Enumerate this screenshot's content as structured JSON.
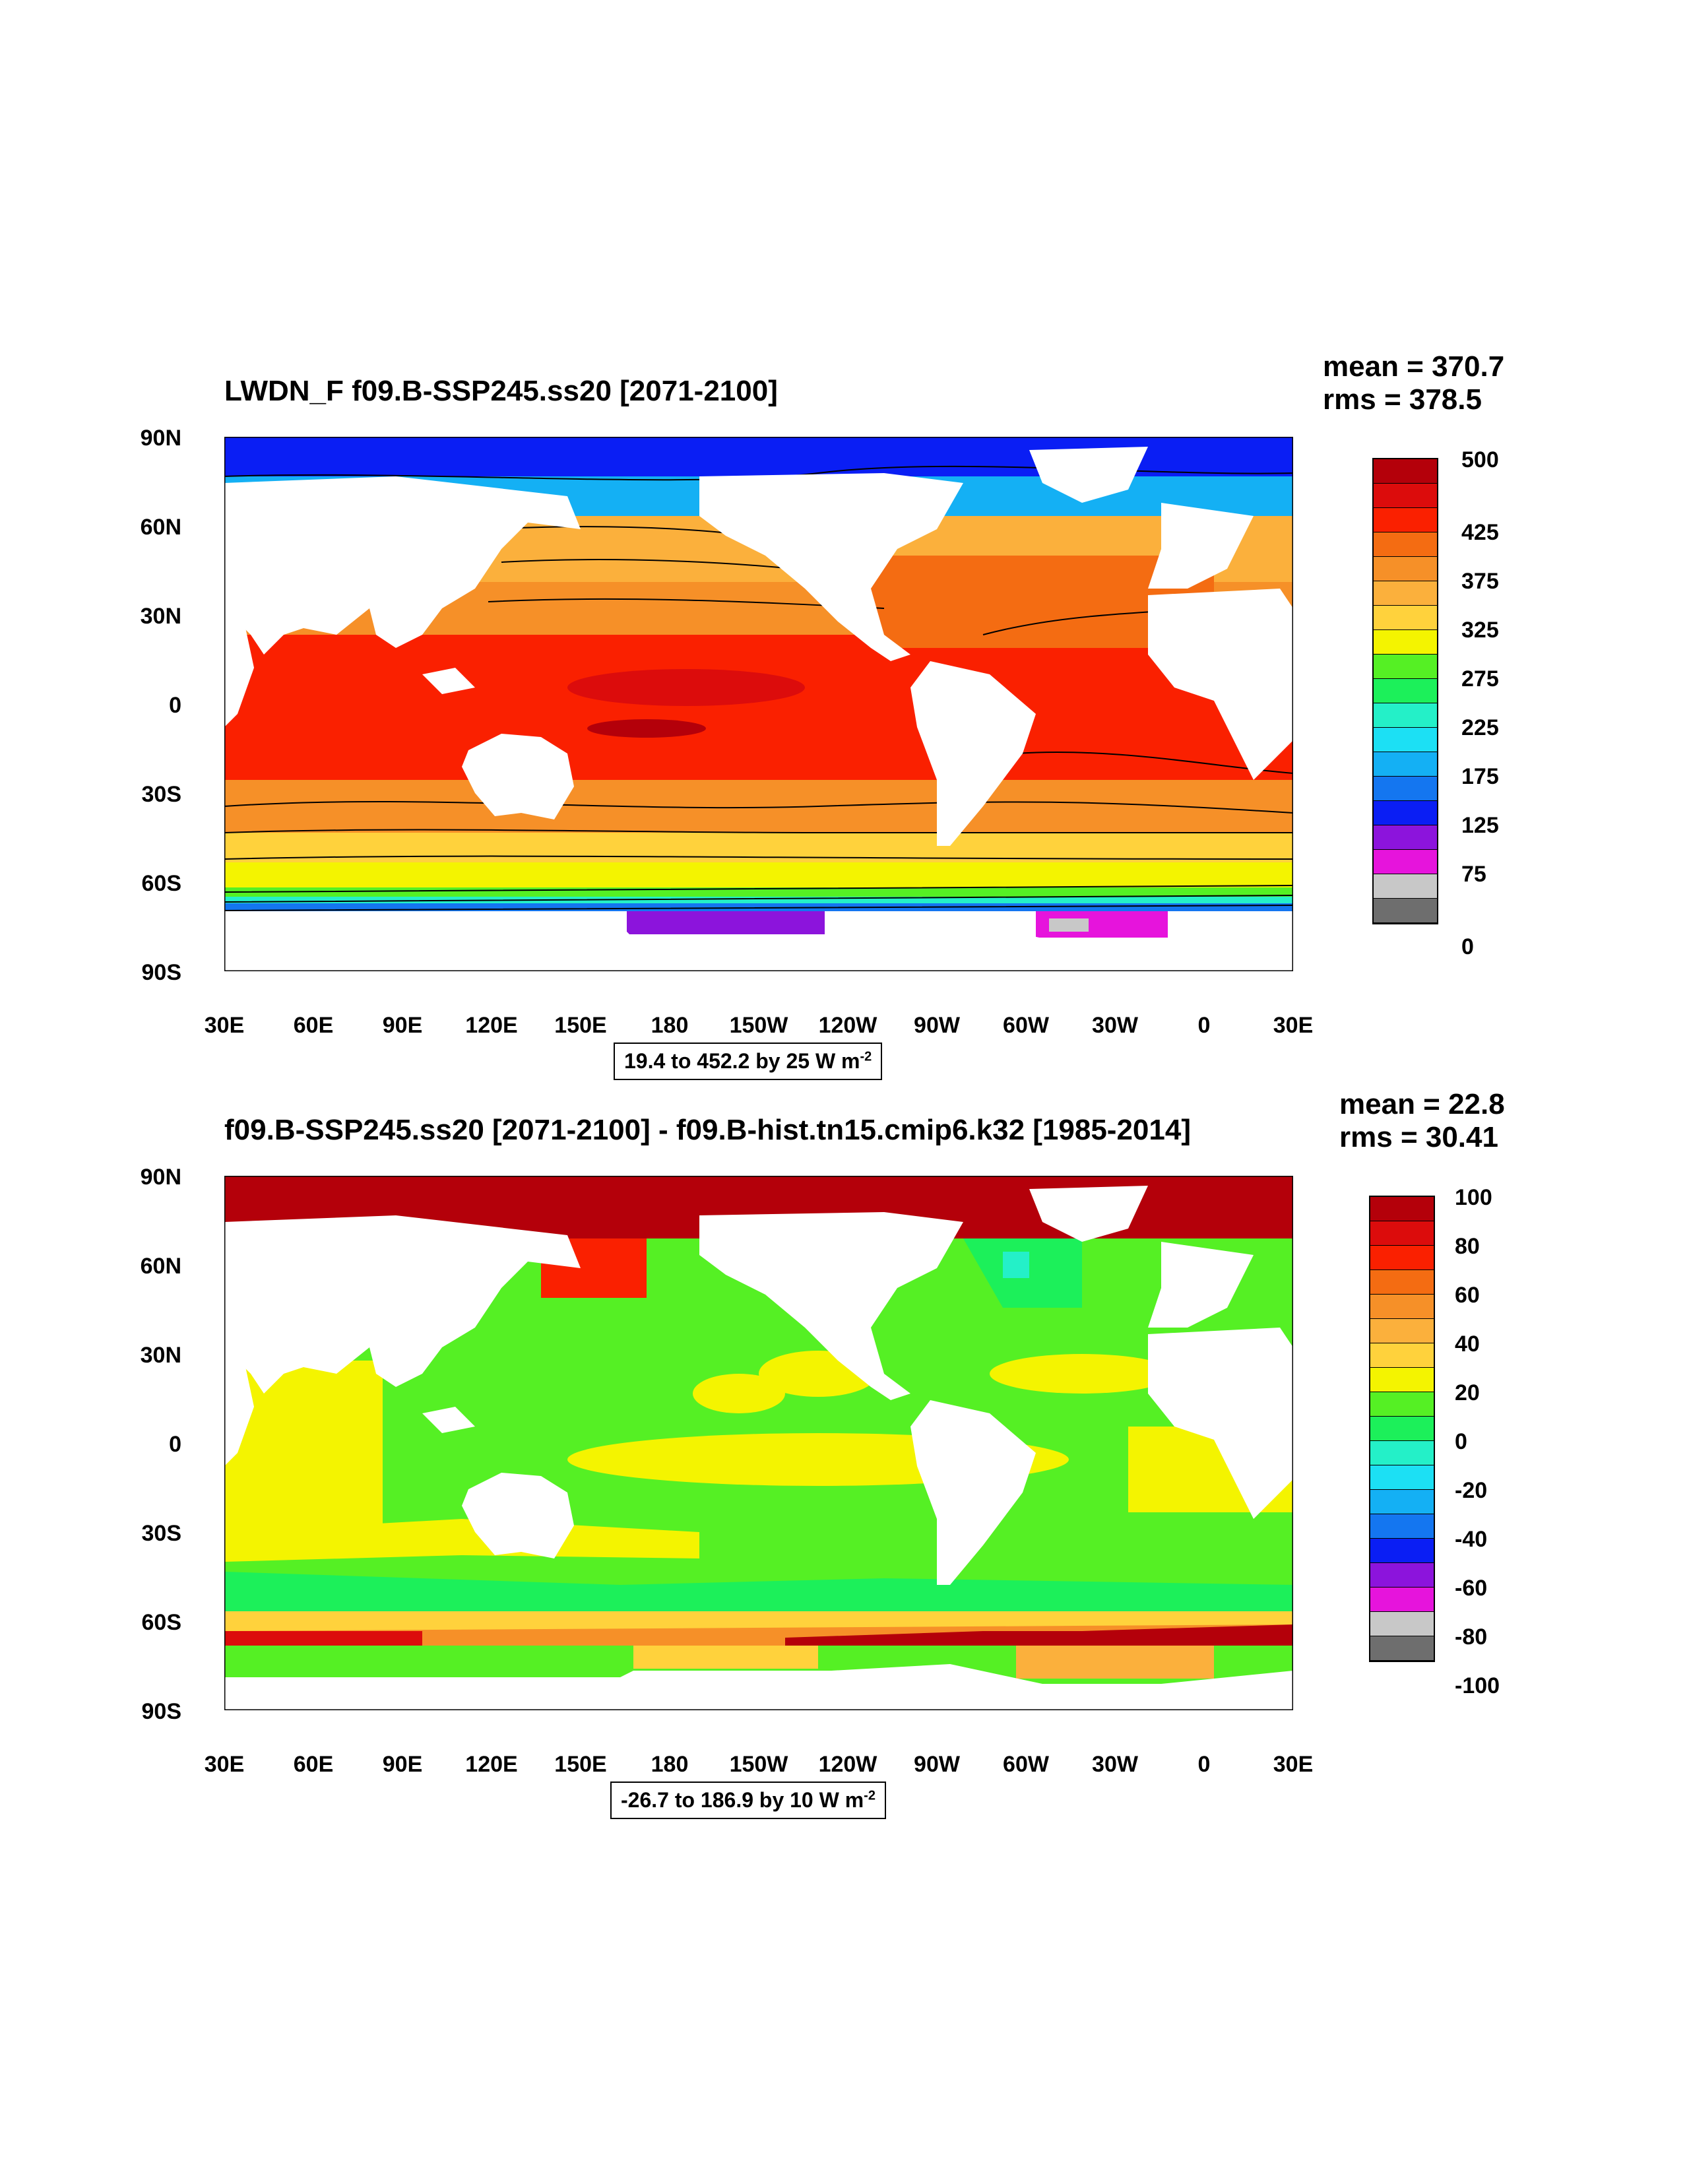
{
  "panels": [
    {
      "title": "LWDN_F f09.B-SSP245.ss20 [2071-2100]",
      "mean": "mean = 370.7",
      "rms": "rms = 378.5",
      "range_text": "19.4 to 452.2 by 25  W m",
      "range_exp": "-2",
      "lat_labels": [
        "90N",
        "60N",
        "30N",
        "0",
        "30S",
        "60S",
        "90S"
      ],
      "lon_labels": [
        "30E",
        "60E",
        "90E",
        "120E",
        "150E",
        "180",
        "150W",
        "120W",
        "90W",
        "60W",
        "30W",
        "0",
        "30E"
      ],
      "colorbar_labels": [
        "500",
        "425",
        "375",
        "325",
        "275",
        "225",
        "175",
        "125",
        "75",
        "0"
      ],
      "colorbar_colors": [
        "#b4000a",
        "#dc0c0c",
        "#fa2000",
        "#f46c12",
        "#f69028",
        "#fbb03c",
        "#ffd23c",
        "#f4f400",
        "#55f024",
        "#1cf05a",
        "#24f0c8",
        "#1ce0f4",
        "#14b0f4",
        "#1476f0",
        "#0a1ef4",
        "#8c14dc",
        "#e614dc",
        "#c8c8c8",
        "#6e6e6e"
      ]
    },
    {
      "title": "f09.B-SSP245.ss20 [2071-2100] - f09.B-hist.tn15.cmip6.k32 [1985-2014]",
      "mean": "mean = 22.8",
      "rms": "rms = 30.41",
      "range_text": "-26.7 to 186.9 by 10  W m",
      "range_exp": "-2",
      "lat_labels": [
        "90N",
        "60N",
        "30N",
        "0",
        "30S",
        "60S",
        "90S"
      ],
      "lon_labels": [
        "30E",
        "60E",
        "90E",
        "120E",
        "150E",
        "180",
        "150W",
        "120W",
        "90W",
        "60W",
        "30W",
        "0",
        "30E"
      ],
      "colorbar_labels": [
        "100",
        "80",
        "60",
        "40",
        "20",
        "0",
        "-20",
        "-40",
        "-60",
        "-80",
        "-100"
      ],
      "colorbar_colors": [
        "#b4000a",
        "#dc0c0c",
        "#fa2000",
        "#f46c12",
        "#f69028",
        "#fbb03c",
        "#ffd23c",
        "#f4f400",
        "#55f024",
        "#1cf05a",
        "#24f0c8",
        "#1ce0f4",
        "#14b0f4",
        "#1476f0",
        "#0a1ef4",
        "#8c14dc",
        "#e614dc",
        "#c8c8c8",
        "#6e6e6e"
      ]
    }
  ]
}
